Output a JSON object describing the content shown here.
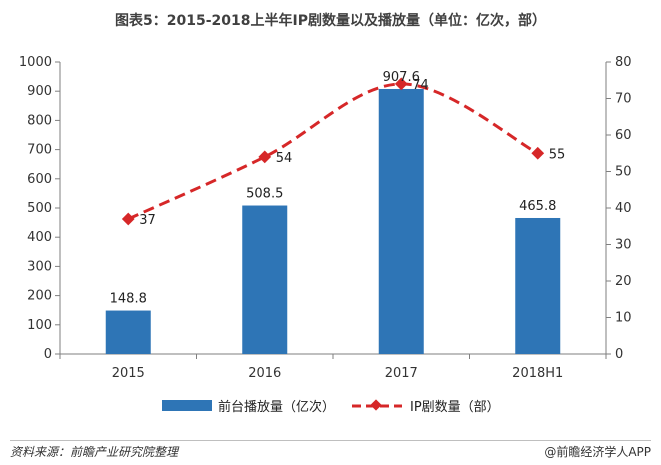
{
  "chart_data": {
    "type": "bar",
    "title": "图表5：2015-2018上半年IP剧数量以及播放量（单位：亿次，部）",
    "categories": [
      "2015",
      "2016",
      "2017",
      "2018H1"
    ],
    "series": [
      {
        "name": "前台播放量（亿次）",
        "type": "bar",
        "axis": "left",
        "values": [
          148.8,
          508.5,
          907.6,
          465.8
        ],
        "labels": [
          "148.8",
          "508.5",
          "907.6",
          "465.8"
        ],
        "color": "#2e75b6"
      },
      {
        "name": "IP剧数量（部）",
        "type": "line",
        "axis": "right",
        "values": [
          37,
          54,
          74,
          55
        ],
        "labels": [
          "37",
          "54",
          "74",
          "55"
        ],
        "color": "#d62728"
      }
    ],
    "y_left": {
      "min": 0,
      "max": 1000,
      "step": 100,
      "ticks": [
        "0",
        "100",
        "200",
        "300",
        "400",
        "500",
        "600",
        "700",
        "800",
        "900",
        "1000"
      ]
    },
    "y_right": {
      "min": 0,
      "max": 80,
      "step": 10,
      "ticks": [
        "0",
        "10",
        "20",
        "30",
        "40",
        "50",
        "60",
        "70",
        "80"
      ]
    },
    "legend_position": "bottom",
    "grid": false
  },
  "footer": {
    "source": "资料来源：前瞻产业研究院整理",
    "brand": "@前瞻经济学人APP"
  }
}
